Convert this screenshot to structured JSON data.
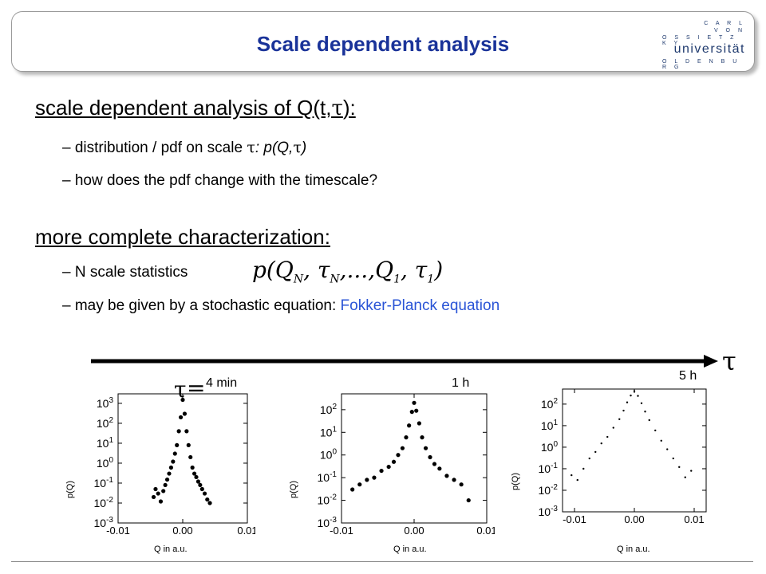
{
  "header": {
    "title": "Scale dependent analysis",
    "logo": {
      "line1": "C A R L",
      "line2": "V O N",
      "line3": "O S S I E T Z K Y",
      "brand": "universität",
      "line5": "O L D E N B U R G"
    }
  },
  "section1": {
    "heading_prefix": "scale dependent analysis of Q(t,",
    "heading_tau": "τ",
    "heading_suffix": "):",
    "bullet1_prefix": "– distribution / pdf on scale ",
    "bullet1_tau": "τ",
    "bullet1_mid": ":  p(Q,",
    "bullet1_tau2": "τ",
    "bullet1_suffix": ")",
    "bullet2": "– how does the pdf change with the timescale?"
  },
  "section2": {
    "heading": "more complete characterization:",
    "bullet1": "– N scale statistics",
    "formula": "p(Q",
    "formula_sub1": "N",
    "formula_mid1": ", τ",
    "formula_sub2": "N",
    "formula_mid2": ",...,Q",
    "formula_sub3": "1",
    "formula_mid3": ", τ",
    "formula_sub4": "1",
    "formula_end": ")",
    "bullet2_prefix": "– may be given by a stochastic equation: ",
    "bullet2_link": "Fokker-Planck equation"
  },
  "scale_arrow": {
    "symbol": "τ"
  },
  "panels": {
    "p1": {
      "tau": "τ",
      "eq": "=",
      "label": "4 min",
      "ylabel": "p(Q)",
      "xlabel": "Q in a.u."
    },
    "p2": {
      "label": "1 h",
      "ylabel": "p(Q)",
      "xlabel": "Q in a.u."
    },
    "p3": {
      "label": "5 h",
      "ylabel": "p(Q)",
      "xlabel": "Q in a.u."
    }
  },
  "colors": {
    "title": "#1a3399",
    "link": "#2a54d6",
    "logo": "#1f3a6e"
  },
  "chart_data": [
    {
      "type": "scatter",
      "title": "",
      "xlabel": "Q in a.u.",
      "ylabel": "p(Q)",
      "ylog": true,
      "xlim": [
        -0.01,
        0.01
      ],
      "ylim": [
        0.001,
        3000
      ],
      "xticks": [
        "-0.01",
        "0.00",
        "0.01"
      ],
      "yticks": [
        "10^3",
        "10^2",
        "10^1",
        "10^0",
        "10^-1",
        "10^-2",
        "10^-3"
      ],
      "x": [
        -0.0045,
        -0.0042,
        -0.0038,
        -0.0034,
        -0.003,
        -0.0027,
        -0.0024,
        -0.0021,
        -0.0018,
        -0.0015,
        -0.0012,
        -0.0009,
        -0.0006,
        -0.0003,
        0.0,
        0.0003,
        0.0006,
        0.0009,
        0.0012,
        0.0015,
        0.0018,
        0.0021,
        0.0024,
        0.0027,
        0.003,
        0.0034,
        0.0038,
        0.0042
      ],
      "y": [
        0.02,
        0.05,
        0.03,
        0.012,
        0.04,
        0.08,
        0.15,
        0.3,
        0.6,
        1.2,
        3,
        8,
        40,
        200,
        1500,
        300,
        40,
        8,
        2,
        0.6,
        0.3,
        0.2,
        0.12,
        0.08,
        0.05,
        0.03,
        0.015,
        0.01
      ]
    },
    {
      "type": "scatter",
      "title": "",
      "xlabel": "Q in a.u.",
      "ylabel": "p(Q)",
      "ylog": true,
      "xlim": [
        -0.01,
        0.01
      ],
      "ylim": [
        0.001,
        500
      ],
      "xticks": [
        "-0.01",
        "0.00",
        "0.01"
      ],
      "yticks": [
        "10^2",
        "10^1",
        "10^0",
        "10^-1",
        "10^-2",
        "10^-3"
      ],
      "x": [
        -0.0085,
        -0.0075,
        -0.0065,
        -0.0055,
        -0.0045,
        -0.0035,
        -0.0028,
        -0.0022,
        -0.0016,
        -0.0011,
        -0.0007,
        -0.0003,
        0.0,
        0.0003,
        0.0007,
        0.0011,
        0.0016,
        0.0022,
        0.0028,
        0.0035,
        0.0045,
        0.0055,
        0.0065,
        0.0075
      ],
      "y": [
        0.03,
        0.05,
        0.08,
        0.1,
        0.2,
        0.3,
        0.5,
        1,
        2,
        6,
        20,
        80,
        200,
        90,
        25,
        6,
        2,
        0.8,
        0.4,
        0.25,
        0.12,
        0.08,
        0.05,
        0.01
      ]
    },
    {
      "type": "scatter",
      "title": "",
      "xlabel": "Q in a.u.",
      "ylabel": "p(Q)",
      "ylog": true,
      "xlim": [
        -0.012,
        0.012
      ],
      "ylim": [
        0.001,
        500
      ],
      "xticks": [
        "-0.01",
        "0.00",
        "0.01"
      ],
      "yticks": [
        "10^2",
        "10^1",
        "10^0",
        "10^-1",
        "10^-2",
        "10^-3"
      ],
      "x": [
        -0.0105,
        -0.0095,
        -0.0085,
        -0.0075,
        -0.0065,
        -0.0055,
        -0.0045,
        -0.0035,
        -0.0025,
        -0.0018,
        -0.0012,
        -0.0006,
        0.0,
        0.0006,
        0.0012,
        0.0018,
        0.0025,
        0.0035,
        0.0045,
        0.0055,
        0.0065,
        0.0075,
        0.0085,
        0.0095
      ],
      "y": [
        0.05,
        0.03,
        0.1,
        0.3,
        0.6,
        1.5,
        3,
        8,
        20,
        50,
        120,
        250,
        400,
        240,
        110,
        45,
        18,
        6,
        2,
        0.8,
        0.3,
        0.12,
        0.04,
        0.08
      ]
    }
  ]
}
